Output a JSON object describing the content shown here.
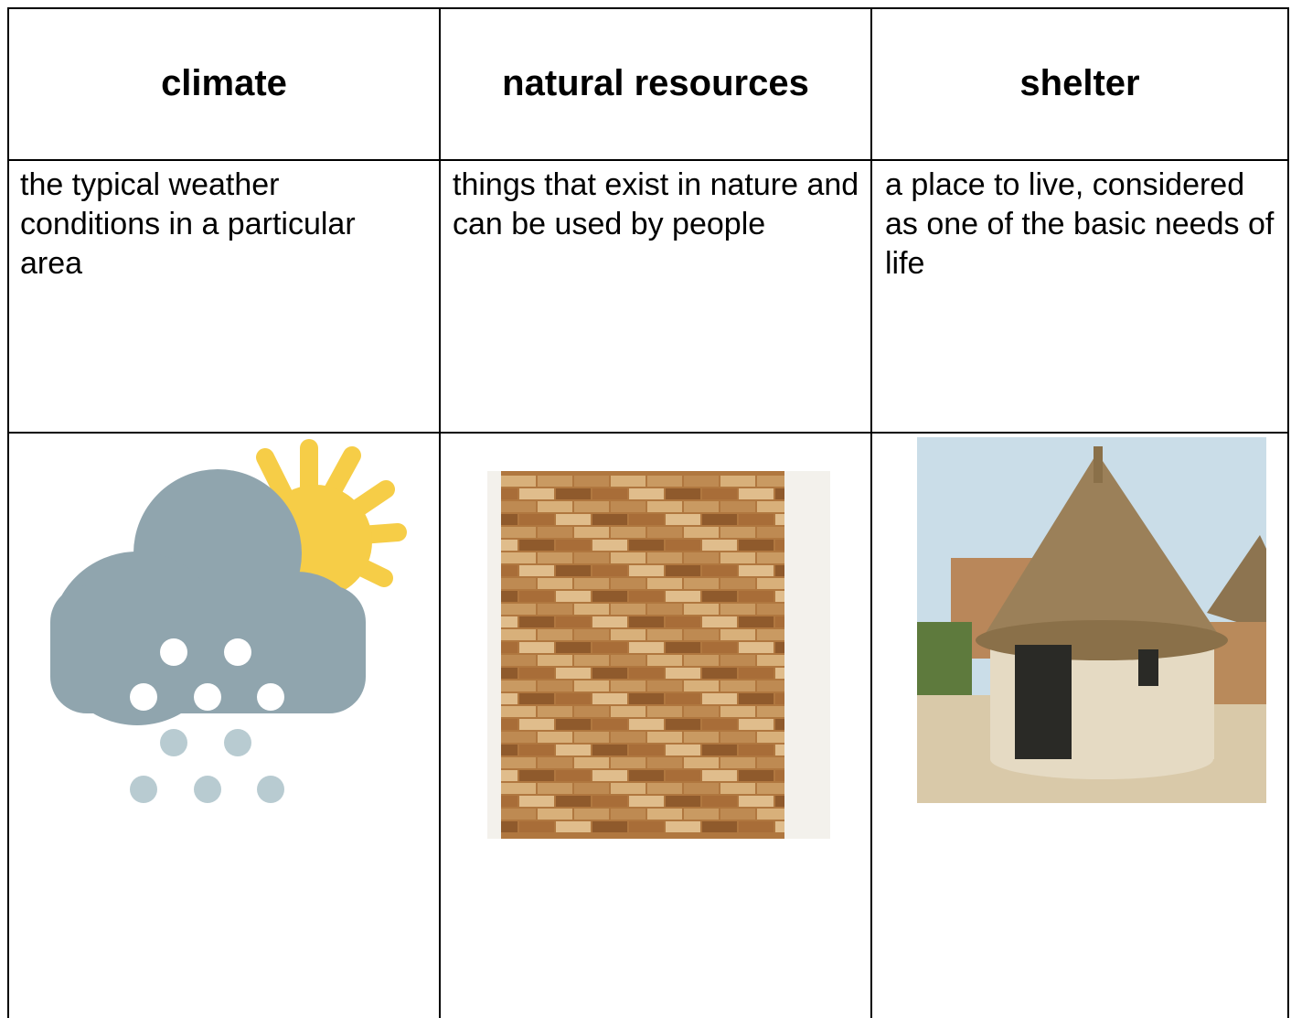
{
  "table": {
    "header": [
      "climate",
      "natural resources",
      "shelter"
    ],
    "rows": [
      [
        "the typical weather conditions in a particular area",
        "things that exist in nature and can be used by people",
        "a place to live, considered as one of the basic needs of life"
      ]
    ]
  }
}
